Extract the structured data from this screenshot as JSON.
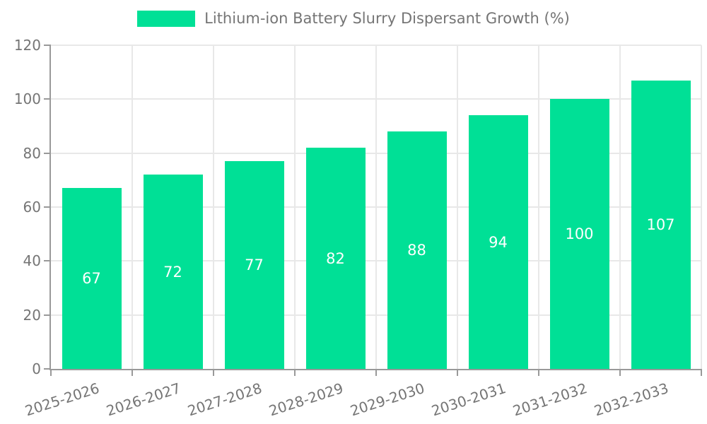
{
  "chart": {
    "legend": {
      "position": "top-center",
      "swatch_color": "#00E096"
    },
    "colors": {
      "bar": "#00E096",
      "bar_label": "#ffffff",
      "axis_label": "#757575",
      "axis_line": "#999999",
      "grid_line": "#e8e8e8",
      "background": "#ffffff"
    }
  },
  "chart_data": {
    "type": "bar",
    "title": "Lithium-ion Battery Slurry Dispersant Growth (%)",
    "categories": [
      "2025-2026",
      "2026-2027",
      "2027-2028",
      "2028-2029",
      "2029-2030",
      "2030-2031",
      "2031-2032",
      "2032-2033"
    ],
    "values": [
      67,
      72,
      77,
      82,
      88,
      94,
      100,
      107
    ],
    "xlabel": "",
    "ylabel": "",
    "ylim": [
      0,
      120
    ],
    "yticks": [
      0,
      20,
      40,
      60,
      80,
      100,
      120
    ],
    "grid": true,
    "bar_labels": "inside-center",
    "legend_position": "top"
  }
}
